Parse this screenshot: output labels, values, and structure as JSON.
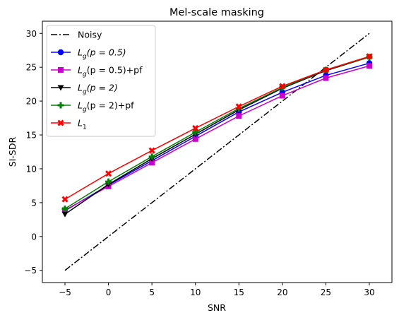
{
  "chart_data": {
    "type": "line",
    "title": "Mel-scale masking",
    "xlabel": "SNR",
    "ylabel": "SI-SDR",
    "x": [
      -5,
      0,
      5,
      10,
      15,
      20,
      25,
      30
    ],
    "xlim": [
      -7.6,
      32.6
    ],
    "ylim": [
      -6.8,
      31.8
    ],
    "xticks": [
      -5,
      0,
      5,
      10,
      15,
      20,
      25,
      30
    ],
    "yticks": [
      -5,
      0,
      5,
      10,
      15,
      20,
      25,
      30
    ],
    "xtick_labels": [
      "−5",
      "0",
      "5",
      "10",
      "15",
      "20",
      "25",
      "30"
    ],
    "ytick_labels": [
      "−5",
      "0",
      "5",
      "10",
      "15",
      "20",
      "25",
      "30"
    ],
    "grid": false,
    "legend_position": "top-left",
    "series": [
      {
        "name": "Noisy",
        "color": "#000000",
        "style": "dashdot",
        "marker": "none",
        "values": [
          -5,
          0,
          5,
          10,
          15,
          20,
          25,
          30
        ]
      },
      {
        "name": "Lg(p = 0.5)",
        "color": "#0000ff",
        "style": "solid",
        "marker": "circle",
        "values": [
          3.8,
          7.6,
          11.2,
          14.8,
          18.4,
          21.3,
          23.8,
          25.6
        ]
      },
      {
        "name": "Lg(p = 0.5)+pf",
        "color": "#cc00cc",
        "style": "solid",
        "marker": "square",
        "values": [
          3.9,
          7.4,
          10.9,
          14.4,
          17.8,
          20.8,
          23.4,
          25.2
        ]
      },
      {
        "name": "Lg(p = 2)",
        "color": "#000000",
        "style": "solid",
        "marker": "triangle-down",
        "values": [
          3.3,
          7.7,
          11.5,
          15.1,
          18.7,
          21.9,
          24.5,
          26.5
        ]
      },
      {
        "name": "Lg(p = 2)+pf",
        "color": "#008000",
        "style": "solid",
        "marker": "plus",
        "values": [
          4.1,
          8.1,
          11.8,
          15.4,
          18.9,
          22.0,
          24.6,
          26.5
        ]
      },
      {
        "name": "L1",
        "color": "#ff0000",
        "style": "solid",
        "marker": "x",
        "values": [
          5.5,
          9.3,
          12.7,
          16.0,
          19.2,
          22.2,
          24.6,
          26.6
        ]
      }
    ],
    "legend": [
      {
        "base": "Noisy",
        "sub": "",
        "suffix": ""
      },
      {
        "base": "L",
        "sub": "g",
        "suffix": "(p = 0.5)"
      },
      {
        "base": "L",
        "sub": "g",
        "suffix": "(p = 0.5)+pf"
      },
      {
        "base": "L",
        "sub": "g",
        "suffix": "(p = 2)"
      },
      {
        "base": "L",
        "sub": "g",
        "suffix": "(p = 2)+pf"
      },
      {
        "base": "L",
        "sub": "1",
        "suffix": ""
      }
    ]
  }
}
